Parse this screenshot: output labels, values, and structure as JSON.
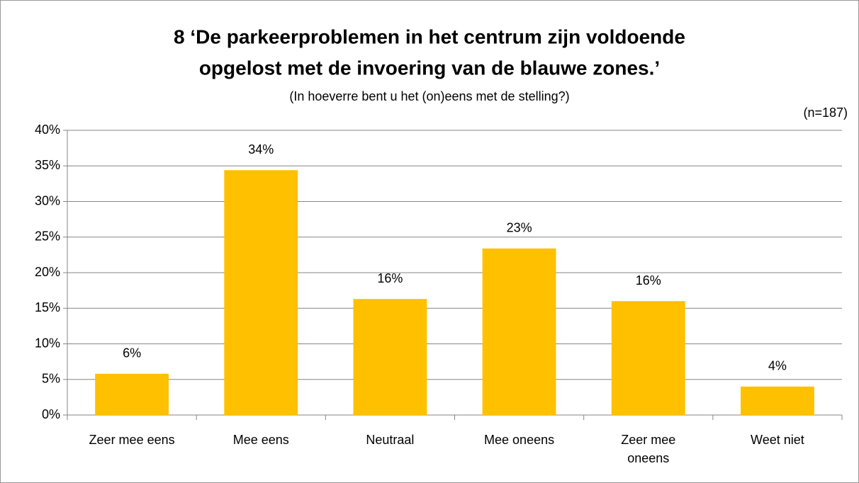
{
  "chart_data": {
    "type": "bar",
    "title": [
      "8 ‘De parkeerproblemen in het centrum zijn voldoende",
      "opgelost met de invoering van de blauwe zones.’"
    ],
    "subtitle": "(In hoeverre bent u het (on)eens met de stelling?)",
    "annotation": "(n=187)",
    "categories": [
      "Zeer mee eens",
      "Mee eens",
      "Neutraal",
      "Mee oneens",
      "Zeer mee oneens",
      "Weet niet"
    ],
    "values": [
      5.8,
      34.4,
      16.3,
      23.4,
      16.0,
      4.0
    ],
    "value_labels": [
      "6%",
      "34%",
      "16%",
      "23%",
      "16%",
      "4%"
    ],
    "color": "#FFC000",
    "ylim": [
      0,
      40
    ],
    "yticks": [
      {
        "value": 0,
        "label": "0%"
      },
      {
        "value": 5,
        "label": "5%"
      },
      {
        "value": 10,
        "label": "10%"
      },
      {
        "value": 15,
        "label": "15%"
      },
      {
        "value": 20,
        "label": "20%"
      },
      {
        "value": 25,
        "label": "25%"
      },
      {
        "value": 30,
        "label": "30%"
      },
      {
        "value": 35,
        "label": "35%"
      },
      {
        "value": 40,
        "label": "40%"
      }
    ],
    "grid": true
  }
}
